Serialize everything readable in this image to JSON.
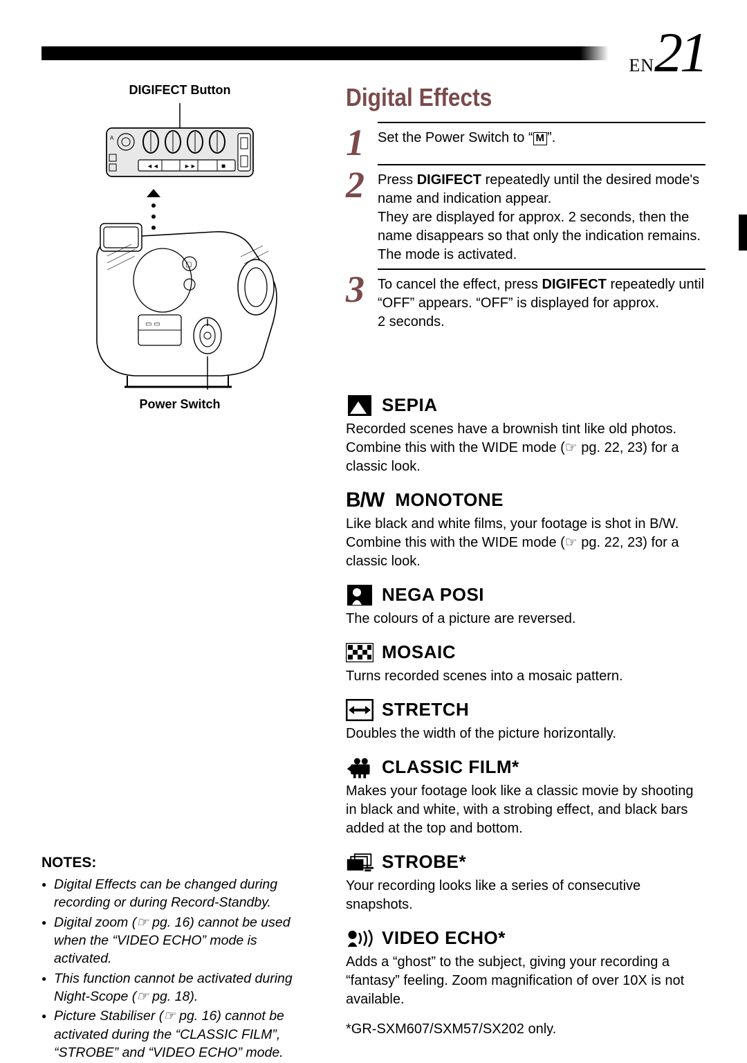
{
  "page": {
    "lang": "EN",
    "number": "21"
  },
  "diagram": {
    "label_top": "DIGIFECT Button",
    "label_bottom": "Power Switch"
  },
  "title": "Digital Effects",
  "steps": [
    {
      "num": "1",
      "text_before": "Set the Power Switch to “",
      "icon": "M",
      "text_after": "”."
    },
    {
      "num": "2",
      "html": "Press <b>DIGIFECT</b> repeatedly until the desired mode's name and indication appear.<br>They are displayed for approx. 2 seconds, then the name disappears so that only the indication remains. The mode is activated."
    },
    {
      "num": "3",
      "html": "To cancel the effect, press <b>DIGIFECT</b> repeatedly until “OFF” appears. “OFF” is displayed for approx. 2 seconds."
    }
  ],
  "effects": [
    {
      "icon": "sepia",
      "name": "SEPIA",
      "desc": "Recorded scenes have a brownish tint like old photos. Combine this with the WIDE mode (☞ pg. 22, 23) for a classic look."
    },
    {
      "icon": "bw",
      "prefix": "B/W",
      "name": "MONOTONE",
      "desc": "Like black and white films, your footage is shot in B/W. Combine this with the WIDE mode (☞ pg. 22, 23) for a classic look."
    },
    {
      "icon": "nega",
      "name": "NEGA POSI",
      "desc": "The colours of a picture are reversed."
    },
    {
      "icon": "mosaic",
      "name": "MOSAIC",
      "desc": "Turns recorded scenes into a mosaic pattern."
    },
    {
      "icon": "stretch",
      "name": "STRETCH",
      "desc": "Doubles the width of the picture horizontally."
    },
    {
      "icon": "classic",
      "name": "CLASSIC FILM*",
      "desc": "Makes your footage look like a classic movie by shooting in black and white, with a strobing effect, and black bars added at the top and bottom."
    },
    {
      "icon": "strobe",
      "name": "STROBE*",
      "desc": "Your recording looks like a series of consecutive snapshots."
    },
    {
      "icon": "echo",
      "name": "VIDEO ECHO*",
      "desc": "Adds a “ghost” to the subject, giving your recording a “fantasy” feeling. Zoom magnification of over 10X is not available."
    }
  ],
  "footnote": "*GR-SXM607/SXM57/SX202 only.",
  "notes": {
    "title": "NOTES:",
    "items": [
      "Digital Effects can be changed during recording or during Record-Standby.",
      "Digital zoom (☞ pg. 16) cannot be used when the “VIDEO ECHO” mode is activated.",
      "This function cannot be activated during Night-Scope (☞ pg. 18).",
      "Picture Stabiliser (☞ pg. 16) cannot be activated during the “CLASSIC FILM”, “STROBE” and “VIDEO ECHO” mode."
    ]
  },
  "colors": {
    "accent": "#7b4a4a",
    "text": "#000000",
    "bg": "#ffffff"
  }
}
